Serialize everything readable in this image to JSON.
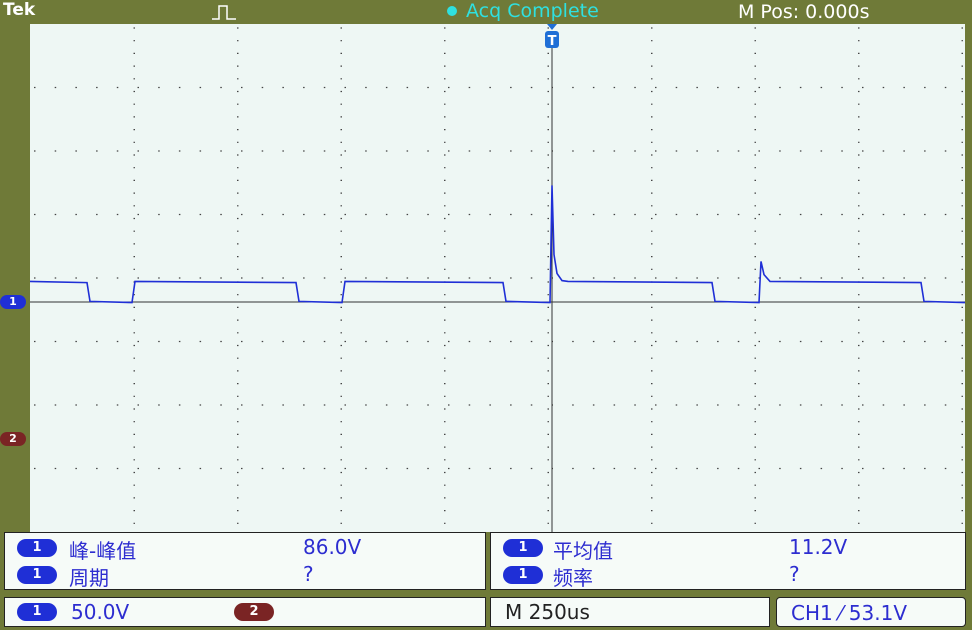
{
  "header": {
    "brand": "Tek",
    "acquisition_icon": "pulse-trigger-icon",
    "acquisition_status": "Acq Complete",
    "position": "M Pos: 0.000s"
  },
  "markers": {
    "trigger": "T",
    "ch1": "1",
    "ch2": "2"
  },
  "measurements": {
    "left": [
      {
        "channel": "1",
        "label": "峰-峰值",
        "value": "86.0V"
      },
      {
        "channel": "1",
        "label": "周期",
        "value": "?"
      }
    ],
    "right": [
      {
        "channel": "1",
        "label": "平均值",
        "value": "11.2V"
      },
      {
        "channel": "1",
        "label": "频率",
        "value": "?"
      }
    ]
  },
  "status_bar": {
    "ch1_channel": "1",
    "ch1_scale": "50.0V",
    "ch2_channel": "2",
    "timebase": "M 250us",
    "trigger": "CH1 ⁄ 53.1V"
  },
  "colors": {
    "frame": "#6f7a38",
    "screen": "#eef7f4",
    "trace": "#1f2fd6",
    "status_cyan": "#2fe0e0"
  }
}
